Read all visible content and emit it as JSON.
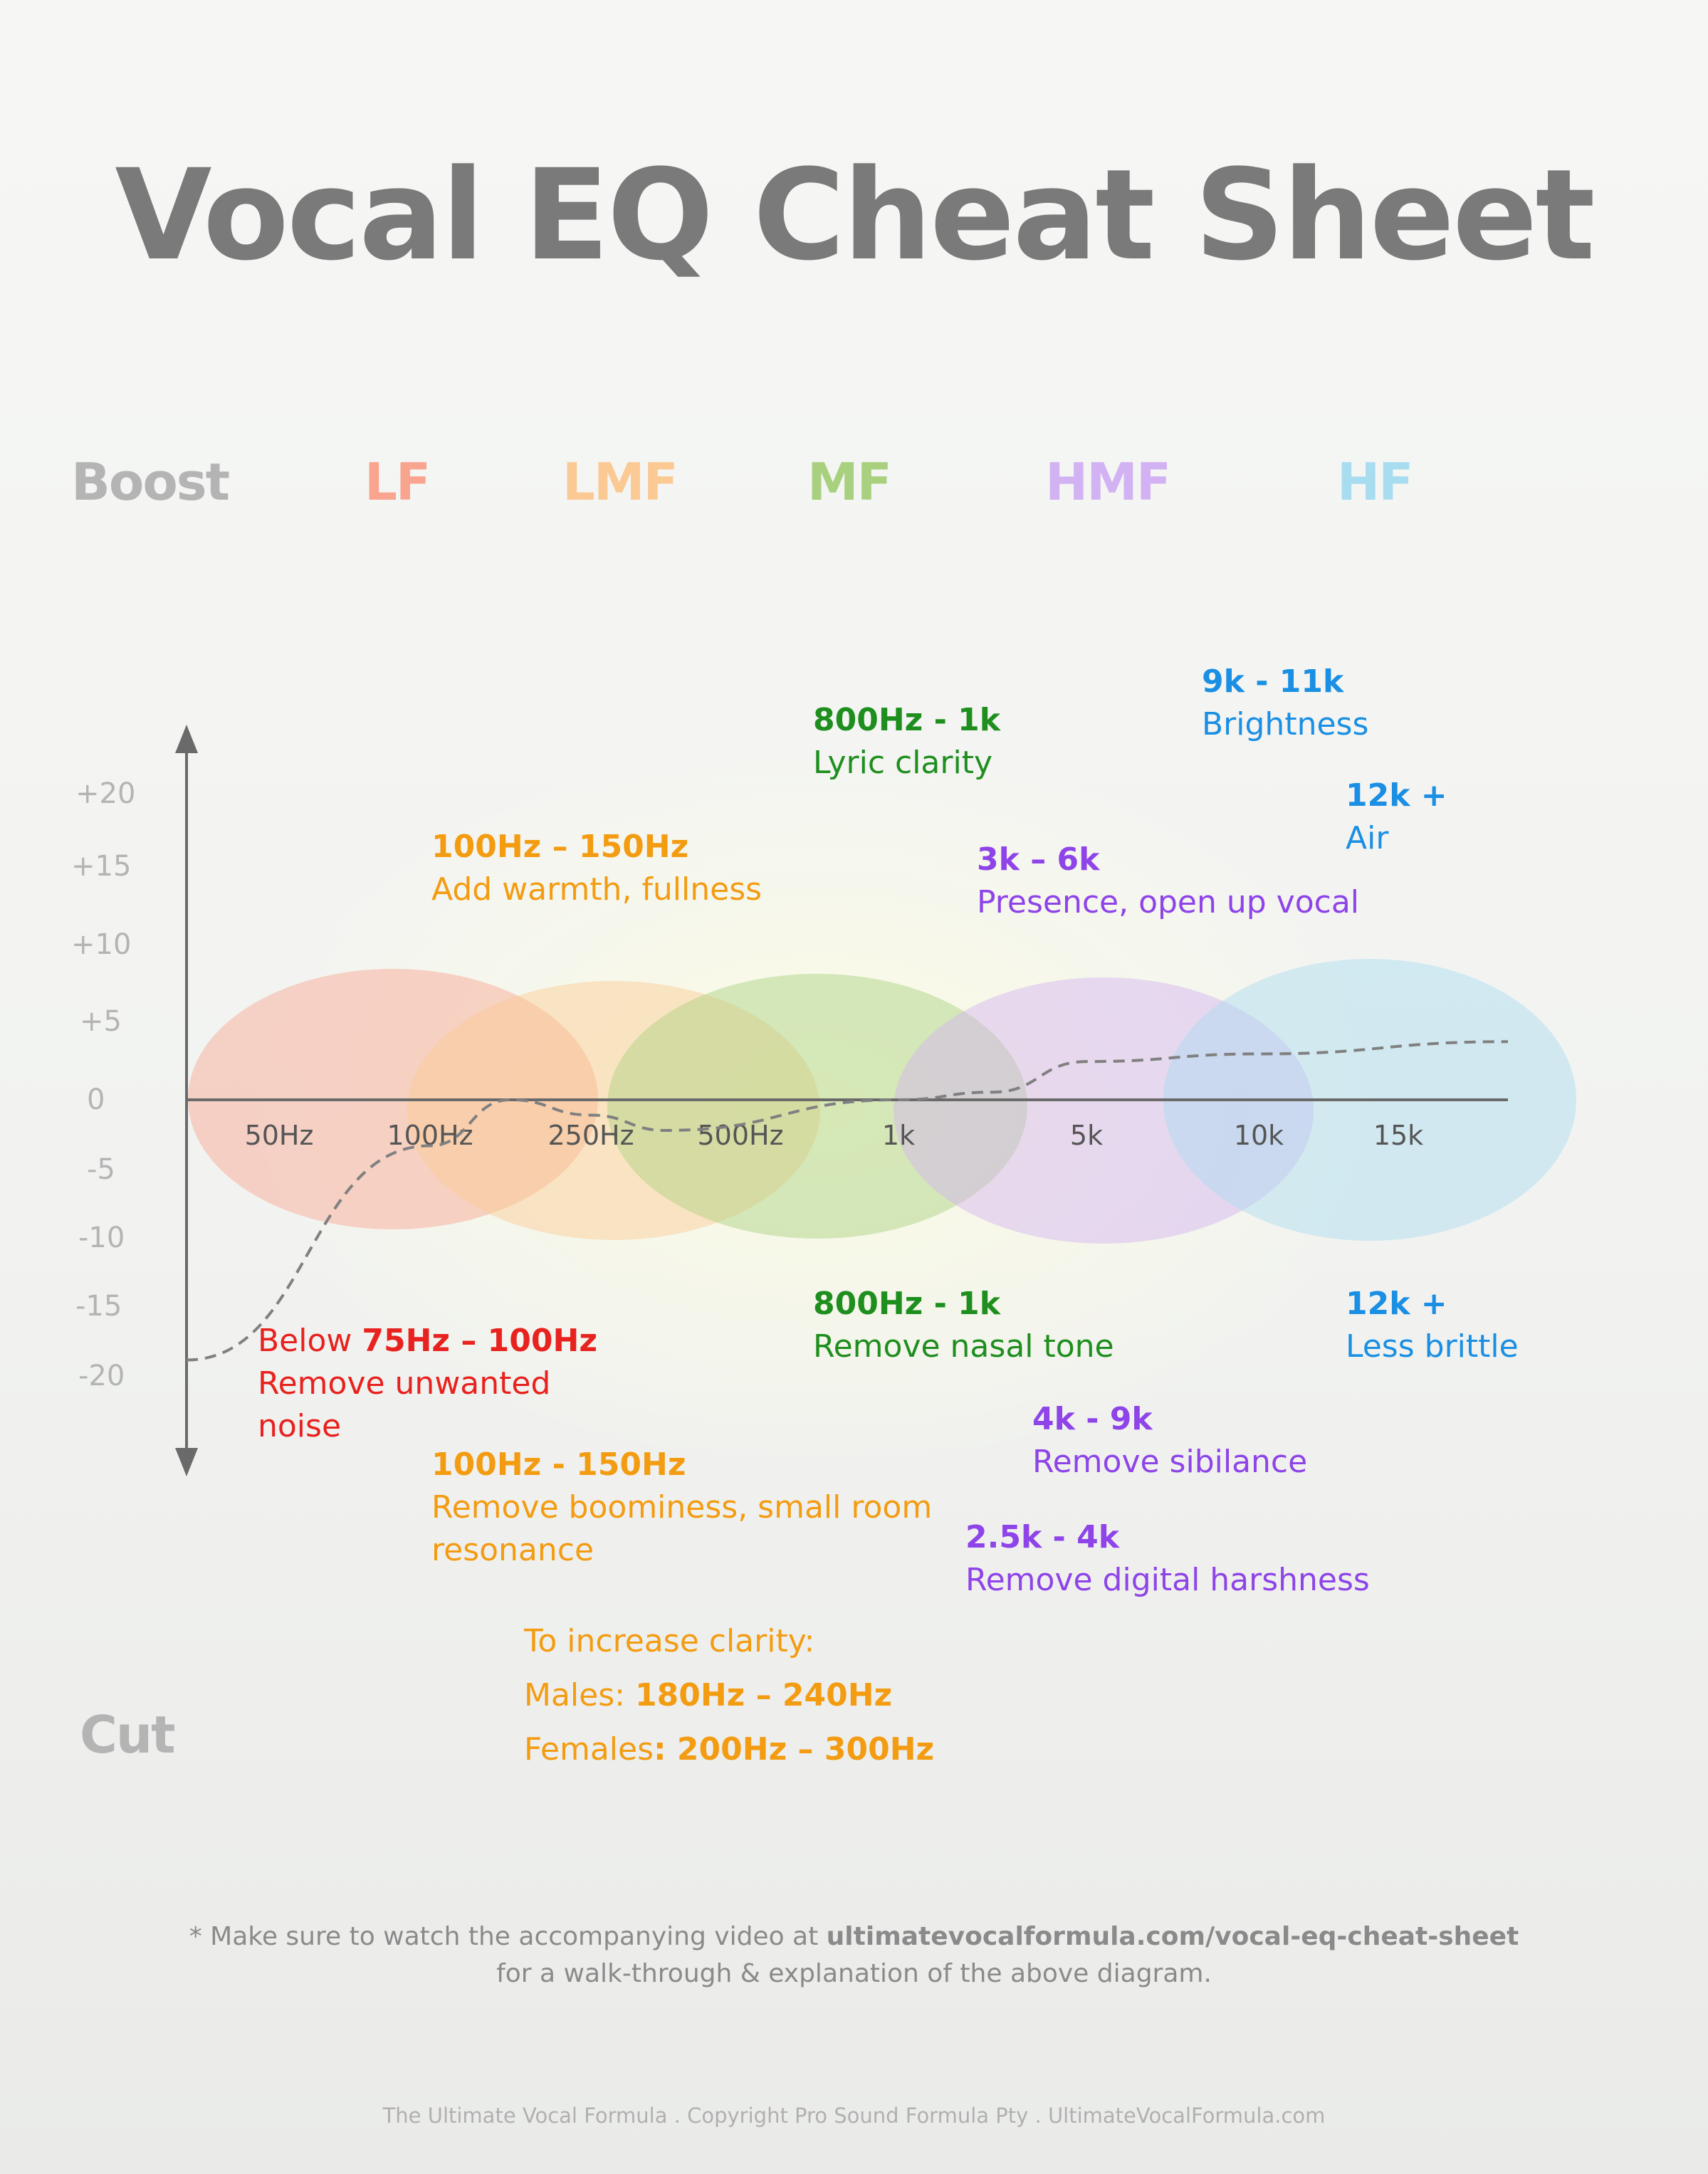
{
  "title": "Vocal EQ Cheat Sheet",
  "side_labels": {
    "boost": "Boost",
    "cut": "Cut"
  },
  "colors": {
    "title": "#7a7a7a",
    "lf": "#f9a48e",
    "lmf": "#fbc993",
    "mf": "#a8d07e",
    "hmf": "#d2b2f2",
    "hf": "#a8dcef",
    "orange": "#f39c12",
    "green": "#1e8e1e",
    "purple": "#8e44e8",
    "blue": "#1a8fe3",
    "red": "#e8221e"
  },
  "chart_data": {
    "type": "line",
    "title": "",
    "xlabel": "",
    "ylabel": "",
    "y_ticks": [
      "+20",
      "+15",
      "+10",
      "+5",
      "0",
      "-5",
      "-10",
      "-15",
      "-20"
    ],
    "x_ticks": [
      "50Hz",
      "100Hz",
      "250Hz",
      "500Hz",
      "1k",
      "5k",
      "10k",
      "15k"
    ],
    "bands": [
      {
        "name": "LF",
        "color": "#f9a48e",
        "center_label": "100Hz"
      },
      {
        "name": "LMF",
        "color": "#fbc993",
        "center_label": "250Hz"
      },
      {
        "name": "MF",
        "color": "#a8d07e",
        "center_label": "500Hz"
      },
      {
        "name": "HMF",
        "color": "#d2b2f2",
        "center_label": "5k"
      },
      {
        "name": "HF",
        "color": "#a8dcef",
        "center_label": "15k"
      }
    ],
    "series": [
      {
        "style": "dashed",
        "color": "#808080",
        "points": [
          {
            "x": "start",
            "y": -17
          },
          {
            "x": "100Hz",
            "y": -3
          },
          {
            "x": "between 100Hz and 250Hz",
            "y": 0
          },
          {
            "x": "250Hz",
            "y": -1
          },
          {
            "x": "between 250Hz and 500Hz",
            "y": -2
          },
          {
            "x": "1k",
            "y": 0
          },
          {
            "x": "between 1k and 5k",
            "y": 0.5
          },
          {
            "x": "5k",
            "y": 2.5
          },
          {
            "x": "10k",
            "y": 3
          },
          {
            "x": "end",
            "y": 3.8
          }
        ]
      }
    ]
  },
  "annotations": {
    "boost": [
      {
        "id": "lmf-boost",
        "range": "100Hz – 150Hz",
        "desc": "Add warmth, fullness",
        "color": "#f39c12"
      },
      {
        "id": "mf-boost",
        "range": "800Hz - 1k",
        "desc": "Lyric clarity",
        "color": "#1e8e1e"
      },
      {
        "id": "hmf-boost",
        "range": "3k – 6k",
        "desc": "Presence, open up vocal",
        "color": "#8e44e8"
      },
      {
        "id": "hf-brightness",
        "range": "9k - 11k",
        "desc": "Brightness",
        "color": "#1a8fe3"
      },
      {
        "id": "hf-air",
        "range": "12k +",
        "desc": "Air",
        "color": "#1a8fe3"
      }
    ],
    "cut": [
      {
        "id": "lf-cut",
        "prefix": "Below ",
        "range": "75Hz – 100Hz",
        "desc_lines": [
          "Remove unwanted",
          "noise"
        ],
        "color": "#e8221e"
      },
      {
        "id": "lmf-cut",
        "range": "100Hz - 150Hz",
        "desc_lines": [
          "Remove boominess, small room",
          "resonance"
        ],
        "color": "#f39c12"
      },
      {
        "id": "mf-cut",
        "range": "800Hz - 1k",
        "desc_lines": [
          "Remove nasal tone"
        ],
        "color": "#1e8e1e"
      },
      {
        "id": "hmf-sibilance",
        "range": "4k - 9k",
        "desc_lines": [
          "Remove sibilance"
        ],
        "color": "#8e44e8"
      },
      {
        "id": "hmf-harshness",
        "range": "2.5k - 4k",
        "desc_lines": [
          "Remove digital harshness"
        ],
        "color": "#8e44e8"
      },
      {
        "id": "hf-brittle",
        "range": "12k +",
        "desc_lines": [
          "Less brittle"
        ],
        "color": "#1a8fe3"
      }
    ]
  },
  "clarity": {
    "heading": "To increase clarity:",
    "males_label": "Males: ",
    "males_value": "180Hz – 240Hz",
    "females_label": "Females",
    "females_value": ": 200Hz – 300Hz"
  },
  "footnote": {
    "prefix": "* Make sure to watch the accompanying video at ",
    "url": "ultimatevocalformula.com/vocal-eq-cheat-sheet",
    "line2": "for a walk-through & explanation of the above diagram."
  },
  "footer": "The Ultimate Vocal Formula .  Copyright Pro Sound Formula Pty . UltimateVocalFormula.com"
}
